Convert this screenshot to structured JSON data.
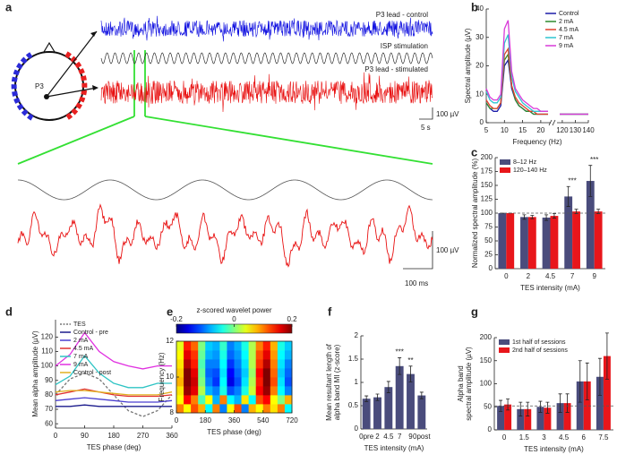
{
  "panel_labels": [
    "a",
    "b",
    "c",
    "d",
    "e",
    "f",
    "g"
  ],
  "panel_a": {
    "control": "P3 lead - control",
    "stimulation": "ISP stimulation",
    "stimulated": "P3 lead - stimulated",
    "electrode": "P3",
    "scale_voltage": "100 µV",
    "scale_time": "5 s",
    "zoom_scale_voltage": "100 µV",
    "zoom_scale_time": "100 ms"
  },
  "chart_data": [
    {
      "type": "line",
      "xlabel": "Frequency (Hz)",
      "ylabel": "Spectral amplitude (µV)",
      "x": [
        5,
        6,
        7,
        8,
        9,
        10,
        11,
        12,
        13,
        14,
        15,
        16,
        17,
        18,
        19,
        20,
        21,
        22,
        118,
        120,
        125,
        130,
        135,
        140
      ],
      "xlim": [
        5,
        140
      ],
      "xbreak": [
        22,
        118
      ],
      "xticks": [
        5,
        10,
        15,
        20,
        120,
        130,
        140
      ],
      "ylim": [
        0,
        40
      ],
      "yticks": [
        0,
        10,
        20,
        30,
        40
      ],
      "legend": "upper right",
      "series": [
        {
          "name": "Control",
          "color": "#1c1ca8",
          "values": [
            7,
            5,
            4,
            4,
            6,
            20,
            22,
            12,
            8,
            6,
            5,
            4,
            4,
            3,
            3,
            3,
            3,
            3,
            3,
            3,
            3,
            3,
            3,
            3
          ]
        },
        {
          "name": "2 mA",
          "color": "#2e8b2e",
          "values": [
            7,
            5,
            5,
            5,
            7,
            22,
            24,
            13,
            8,
            6,
            5,
            4,
            4,
            3,
            3,
            3,
            3,
            3,
            3,
            3,
            3,
            3,
            3,
            3
          ]
        },
        {
          "name": "4.5 mA",
          "color": "#e0402a",
          "values": [
            8,
            6,
            5,
            5,
            7,
            24,
            26,
            13,
            9,
            7,
            6,
            5,
            4,
            4,
            3,
            3,
            3,
            3,
            3,
            3,
            3,
            3,
            3,
            3
          ]
        },
        {
          "name": "7 mA",
          "color": "#2ec4d0",
          "values": [
            11,
            8,
            7,
            7,
            9,
            28,
            31,
            16,
            11,
            9,
            7,
            6,
            5,
            4,
            4,
            4,
            4,
            4,
            3,
            3,
            3,
            3,
            3,
            3
          ]
        },
        {
          "name": "9 mA",
          "color": "#d93ad9",
          "values": [
            12,
            9,
            8,
            8,
            10,
            33,
            36,
            18,
            12,
            10,
            8,
            7,
            6,
            5,
            5,
            4,
            4,
            4,
            3,
            3,
            3,
            3,
            3,
            3
          ]
        }
      ]
    },
    {
      "type": "bar",
      "xlabel": "TES intensity (mA)",
      "ylabel": "Normalized spectral amplitude (%)",
      "categories": [
        "0",
        "2",
        "4.5",
        "7",
        "9"
      ],
      "ylim": [
        0,
        200
      ],
      "yticks": [
        0,
        25,
        50,
        75,
        100,
        125,
        150,
        175,
        200
      ],
      "reference_line": 100,
      "legend": "upper left",
      "annotations": [
        {
          "text": "***",
          "x": "7"
        },
        {
          "text": "***",
          "x": "9"
        }
      ],
      "series": [
        {
          "name": "8–12 Hz",
          "color": "#4a4c7c",
          "values": [
            100,
            93,
            92,
            130,
            158
          ],
          "errors": [
            0,
            4,
            5,
            18,
            28
          ]
        },
        {
          "name": "120–140 Hz",
          "color": "#e8161b",
          "values": [
            100,
            93,
            95,
            103,
            103
          ],
          "errors": [
            0,
            3,
            4,
            4,
            4
          ]
        }
      ]
    },
    {
      "type": "line",
      "xlabel": "TES phase (deg)",
      "ylabel": "Mean alpha amplitude (µV)",
      "x": [
        0,
        45,
        90,
        135,
        180,
        225,
        270,
        315,
        360
      ],
      "xlim": [
        0,
        360
      ],
      "xticks": [
        0,
        90,
        180,
        270,
        360
      ],
      "ylim": [
        57,
        132
      ],
      "yticks": [
        60,
        70,
        80,
        90,
        100,
        110,
        120
      ],
      "legend": "upper left",
      "series": [
        {
          "name": "TES",
          "color": "#777777",
          "dash": true,
          "values": [
            80,
            91,
            95,
            91,
            80,
            69,
            65,
            69,
            80
          ]
        },
        {
          "name": "Control - pre",
          "color": "#1a1a8c",
          "values": [
            72,
            72,
            73,
            72,
            72,
            72,
            72,
            72,
            72
          ]
        },
        {
          "name": "2 mA",
          "color": "#4b3fd0",
          "values": [
            76,
            77,
            78,
            77,
            76,
            75,
            75,
            75,
            76
          ]
        },
        {
          "name": "4.5 mA",
          "color": "#e03030",
          "values": [
            80,
            82,
            84,
            82,
            80,
            79,
            79,
            79,
            80
          ]
        },
        {
          "name": "7 mA",
          "color": "#2ec4c4",
          "values": [
            87,
            93,
            107,
            95,
            88,
            85,
            85,
            88,
            88
          ]
        },
        {
          "name": "9 mA",
          "color": "#e030e0",
          "values": [
            100,
            108,
            123,
            110,
            103,
            100,
            98,
            100,
            100
          ]
        },
        {
          "name": "Control - post",
          "color": "#e0b020",
          "values": [
            82,
            83,
            83,
            82,
            81,
            80,
            80,
            80,
            82
          ]
        }
      ]
    },
    {
      "type": "heatmap",
      "xlabel": "TES phase (deg)",
      "ylabel": "Frequency (Hz)",
      "colorbar_label": "z-scored wavelet power",
      "xlim": [
        0,
        720
      ],
      "xticks": [
        0,
        180,
        360,
        540,
        720
      ],
      "ylim": [
        8,
        12
      ],
      "yticks": [
        8,
        10,
        12
      ],
      "clim": [
        -0.2,
        0.2
      ],
      "colorbar_ticks": [
        -0.2,
        0,
        0.2
      ],
      "z": [
        [
          0.1,
          0.05,
          0.12,
          0.08,
          -0.05,
          0.1,
          -0.1,
          0.05,
          0.12,
          -0.1,
          0.08,
          0.05,
          0.1,
          0.06,
          0.1,
          -0.05
        ],
        [
          0.05,
          0.15,
          0.1,
          -0.02,
          0.05,
          -0.08,
          0.1,
          -0.05,
          -0.08,
          0.06,
          -0.05,
          0.12,
          0.15,
          0.05,
          0,
          0.08
        ],
        [
          0.06,
          0.19,
          0.16,
          0.02,
          -0.08,
          -0.1,
          -0.04,
          -0.12,
          -0.1,
          -0.04,
          0.03,
          0.15,
          0.19,
          0.1,
          -0.05,
          -0.1
        ],
        [
          0.08,
          0.2,
          0.17,
          0,
          -0.1,
          -0.13,
          -0.05,
          -0.16,
          -0.12,
          -0.06,
          0.02,
          0.14,
          0.2,
          0.12,
          -0.06,
          -0.12
        ],
        [
          0.07,
          0.2,
          0.16,
          -0.01,
          -0.11,
          -0.12,
          -0.06,
          -0.15,
          -0.11,
          -0.07,
          0.01,
          0.15,
          0.2,
          0.11,
          -0.07,
          -0.11
        ],
        [
          0.06,
          0.18,
          0.14,
          -0.02,
          -0.1,
          -0.1,
          -0.05,
          -0.13,
          -0.1,
          -0.06,
          0.02,
          0.13,
          0.18,
          0.1,
          -0.06,
          -0.1
        ],
        [
          0.05,
          0.16,
          0.13,
          -0.01,
          -0.08,
          -0.09,
          -0.04,
          -0.11,
          -0.09,
          -0.05,
          0.02,
          0.12,
          0.16,
          0.09,
          -0.05,
          -0.08
        ],
        [
          0.04,
          0.14,
          0.11,
          0,
          -0.07,
          -0.08,
          -0.03,
          -0.1,
          -0.08,
          -0.04,
          0.02,
          0.1,
          0.14,
          0.08,
          -0.04,
          -0.07
        ]
      ]
    },
    {
      "type": "bar",
      "xlabel": "TES intensity (mA)",
      "ylabel": [
        "Mean resultant length of",
        "alpha band MI (z-score)"
      ],
      "categories": [
        "0pre",
        "2",
        "4.5",
        "7",
        "9",
        "0post"
      ],
      "ylim": [
        0,
        2
      ],
      "yticks": [
        0,
        0.5,
        1,
        1.5,
        2
      ],
      "annotations": [
        {
          "text": "***",
          "x": "7"
        },
        {
          "text": "**",
          "x": "9"
        }
      ],
      "series": [
        {
          "color": "#4a4c7c",
          "values": [
            0.65,
            0.68,
            0.9,
            1.35,
            1.18,
            0.72
          ],
          "errors": [
            0.06,
            0.07,
            0.12,
            0.18,
            0.17,
            0.07
          ]
        }
      ]
    },
    {
      "type": "bar",
      "xlabel": "TES intensity (mA)",
      "ylabel": [
        "Alpha band",
        "spectral amplitude (µV)"
      ],
      "categories": [
        "0",
        "1.5",
        "3",
        "4.5",
        "6",
        "7.5"
      ],
      "ylim": [
        0,
        200
      ],
      "yticks": [
        0,
        50,
        100,
        150,
        200
      ],
      "reference_line": 52,
      "legend": "upper left",
      "series": [
        {
          "name": "1st half of sessions",
          "color": "#4a4c7c",
          "values": [
            52,
            45,
            50,
            58,
            105,
            115
          ],
          "errors": [
            12,
            15,
            12,
            20,
            45,
            40
          ]
        },
        {
          "name": "2nd half of sessions",
          "color": "#e8161b",
          "values": [
            55,
            45,
            48,
            58,
            105,
            160
          ],
          "errors": [
            12,
            15,
            12,
            20,
            40,
            50
          ]
        }
      ]
    }
  ]
}
